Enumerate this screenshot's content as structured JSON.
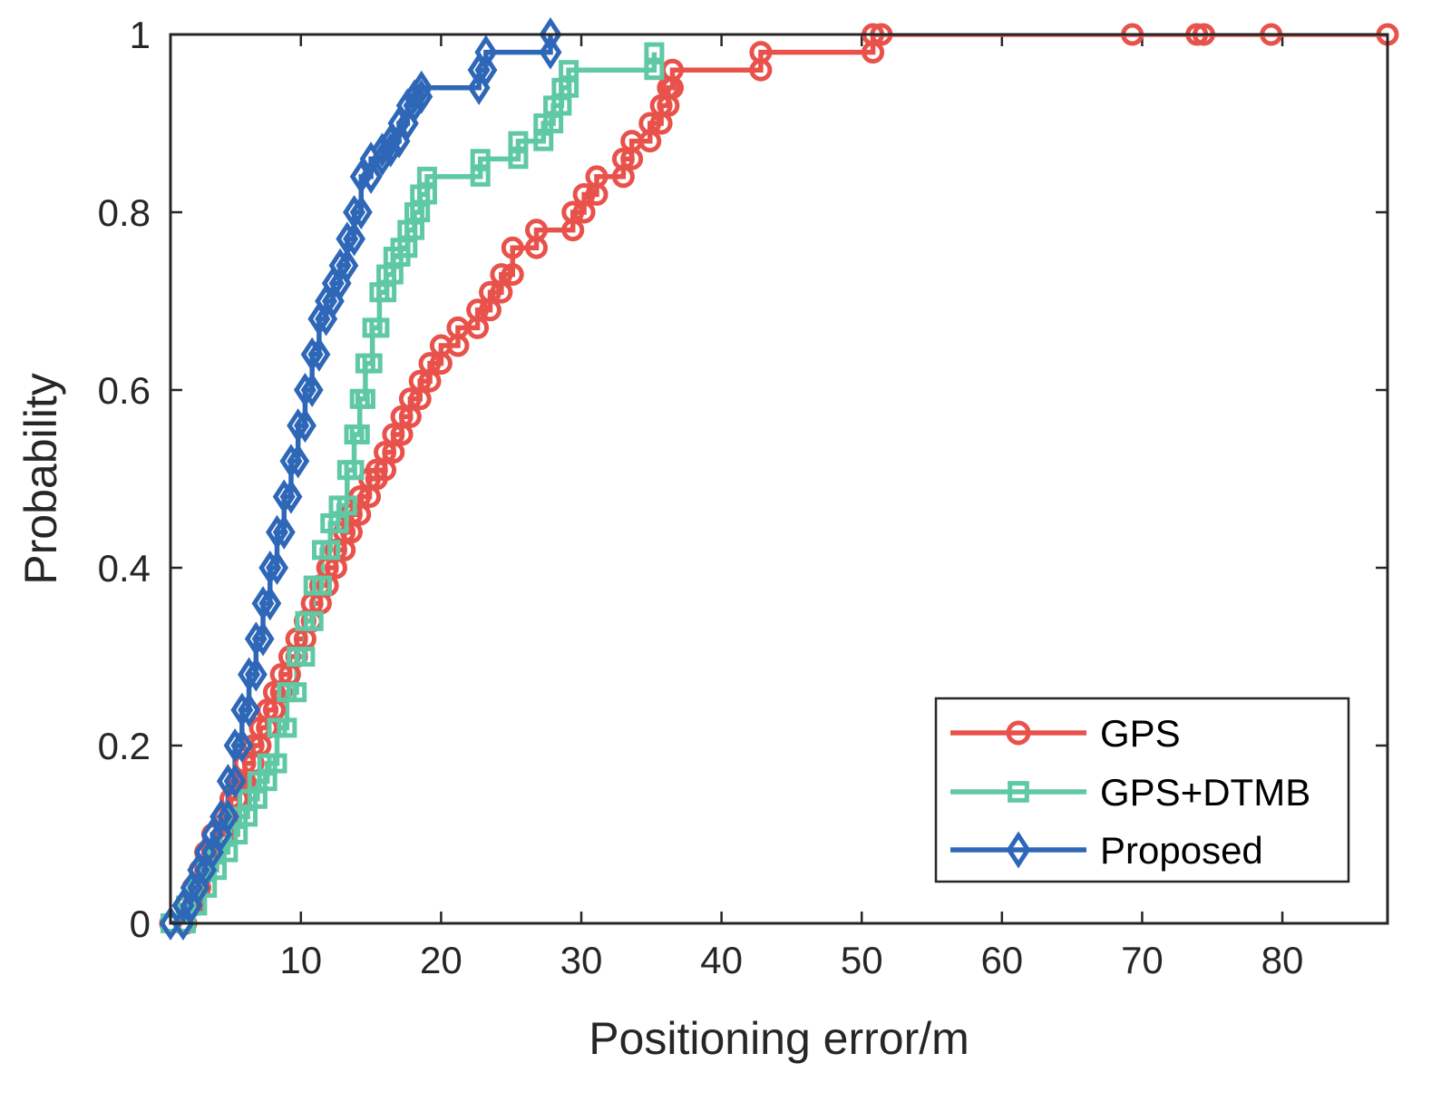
{
  "chart_data": {
    "type": "line",
    "title": "",
    "xlabel": "Positioning error/m",
    "ylabel": "Probability",
    "xlim": [
      0.7,
      87.5
    ],
    "ylim": [
      0,
      1
    ],
    "xticks": [
      10,
      20,
      30,
      40,
      50,
      60,
      70,
      80
    ],
    "yticks": [
      0,
      0.2,
      0.4,
      0.6,
      0.8,
      1
    ],
    "xtick_labels": [
      "10",
      "20",
      "30",
      "40",
      "50",
      "60",
      "70",
      "80"
    ],
    "ytick_labels": [
      "0",
      "0.2",
      "0.4",
      "0.6",
      "0.8",
      "1"
    ],
    "grid": false,
    "legend_position": "bottom-right",
    "series": [
      {
        "name": "GPS",
        "color": "#e8524b",
        "marker": "circle",
        "step_x": [
          0.7,
          1.8,
          2.3,
          2.8,
          3.2,
          3.7,
          4.5,
          5.0,
          5.5,
          6.0,
          6.6,
          7.1,
          7.6,
          8.1,
          8.6,
          9.2,
          9.7,
          10.3,
          10.8,
          11.4,
          11.9,
          12.5,
          13.1,
          13.6,
          14.2,
          14.9,
          15.4,
          16.0,
          16.6,
          17.2,
          17.8,
          18.5,
          19.2,
          20.0,
          21.2,
          22.6,
          23.5,
          24.3,
          25.1,
          26.8,
          29.4,
          30.2,
          31.1,
          33.0,
          33.6,
          34.9,
          35.7,
          36.2,
          36.5,
          42.8,
          50.8,
          51.4,
          69.3,
          73.9,
          74.4,
          79.2,
          87.5
        ],
        "step_y": [
          0,
          0.02,
          0.04,
          0.06,
          0.08,
          0.1,
          0.12,
          0.14,
          0.16,
          0.18,
          0.2,
          0.22,
          0.24,
          0.26,
          0.28,
          0.3,
          0.32,
          0.34,
          0.36,
          0.38,
          0.4,
          0.42,
          0.44,
          0.46,
          0.48,
          0.5,
          0.51,
          0.53,
          0.55,
          0.57,
          0.59,
          0.61,
          0.63,
          0.65,
          0.67,
          0.69,
          0.71,
          0.73,
          0.76,
          0.78,
          0.8,
          0.82,
          0.84,
          0.86,
          0.88,
          0.9,
          0.92,
          0.94,
          0.96,
          0.98,
          1.0,
          1.0,
          1.0,
          1.0,
          1.0,
          1.0,
          1.0
        ]
      },
      {
        "name": "GPS+DTMB",
        "color": "#5fc8a4",
        "marker": "square",
        "step_x": [
          0.7,
          1.8,
          2.6,
          3.3,
          4.0,
          4.8,
          5.5,
          6.2,
          6.9,
          7.6,
          8.3,
          9.0,
          9.7,
          10.3,
          10.9,
          11.5,
          12.1,
          12.7,
          13.3,
          13.8,
          14.2,
          14.6,
          15.1,
          15.6,
          16.1,
          16.6,
          17.1,
          17.6,
          18.1,
          18.5,
          19.0,
          22.8,
          25.5,
          27.3,
          28.0,
          28.6,
          29.1,
          35.2
        ],
        "step_y": [
          0,
          0.02,
          0.04,
          0.06,
          0.08,
          0.1,
          0.12,
          0.14,
          0.16,
          0.18,
          0.22,
          0.26,
          0.3,
          0.34,
          0.38,
          0.42,
          0.45,
          0.47,
          0.51,
          0.55,
          0.59,
          0.63,
          0.67,
          0.71,
          0.73,
          0.75,
          0.76,
          0.78,
          0.8,
          0.82,
          0.84,
          0.86,
          0.88,
          0.9,
          0.92,
          0.94,
          0.96,
          0.98
        ]
      },
      {
        "name": "Proposed",
        "color": "#2f67b8",
        "marker": "diamond",
        "step_x": [
          0.7,
          1.6,
          2.2,
          2.7,
          3.2,
          3.7,
          4.3,
          4.8,
          5.3,
          5.8,
          6.3,
          6.8,
          7.3,
          7.8,
          8.3,
          8.8,
          9.3,
          9.8,
          10.3,
          10.8,
          11.3,
          11.8,
          12.3,
          12.8,
          13.3,
          13.8,
          14.3,
          15.0,
          15.8,
          16.4,
          17.0,
          17.6,
          18.1,
          18.6,
          22.7,
          23.2,
          27.8
        ],
        "step_y": [
          0,
          0.02,
          0.04,
          0.06,
          0.08,
          0.1,
          0.12,
          0.16,
          0.2,
          0.24,
          0.28,
          0.32,
          0.36,
          0.4,
          0.44,
          0.48,
          0.52,
          0.56,
          0.6,
          0.64,
          0.68,
          0.7,
          0.72,
          0.74,
          0.77,
          0.8,
          0.84,
          0.86,
          0.87,
          0.88,
          0.9,
          0.92,
          0.93,
          0.94,
          0.96,
          0.98,
          1.0
        ]
      }
    ]
  }
}
